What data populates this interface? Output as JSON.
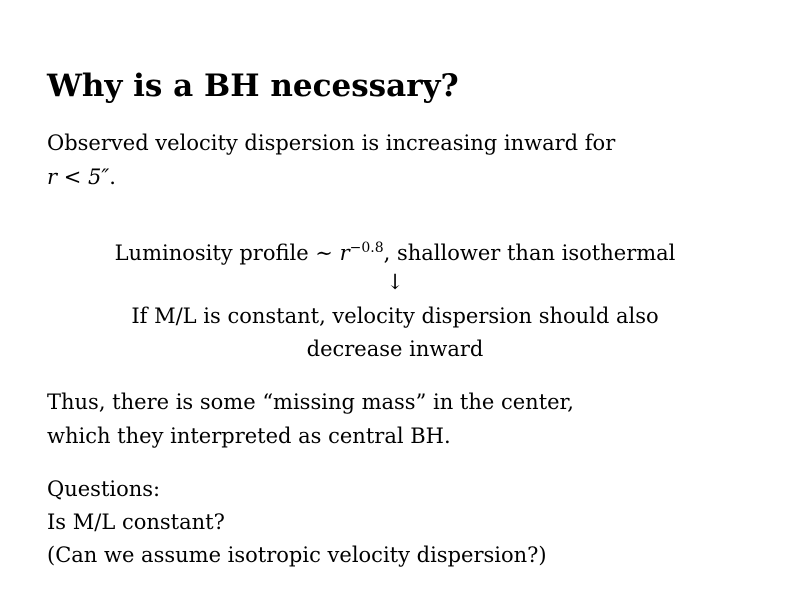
{
  "slide": {
    "title": "Why is a BH necessary?",
    "para1": {
      "line1": "Observed velocity dispersion is increasing inward for",
      "line2_math": "r < 5″",
      "line2_end": "."
    },
    "argument": {
      "line1_pre": "Luminosity profile ∼ ",
      "line1_var": "r",
      "line1_exp": "−0.8",
      "line1_post": ", shallower than isothermal",
      "arrow": "↓",
      "line2": "If M/L is constant, velocity dispersion should also",
      "line3": "decrease inward"
    },
    "para2": {
      "line1": "Thus, there is some “missing mass” in the center,",
      "line2": "which they interpreted as central BH."
    },
    "questions": {
      "heading": "Questions:",
      "q1": "Is M/L constant?",
      "q2": "(Can we assume isotropic velocity dispersion?)"
    }
  }
}
